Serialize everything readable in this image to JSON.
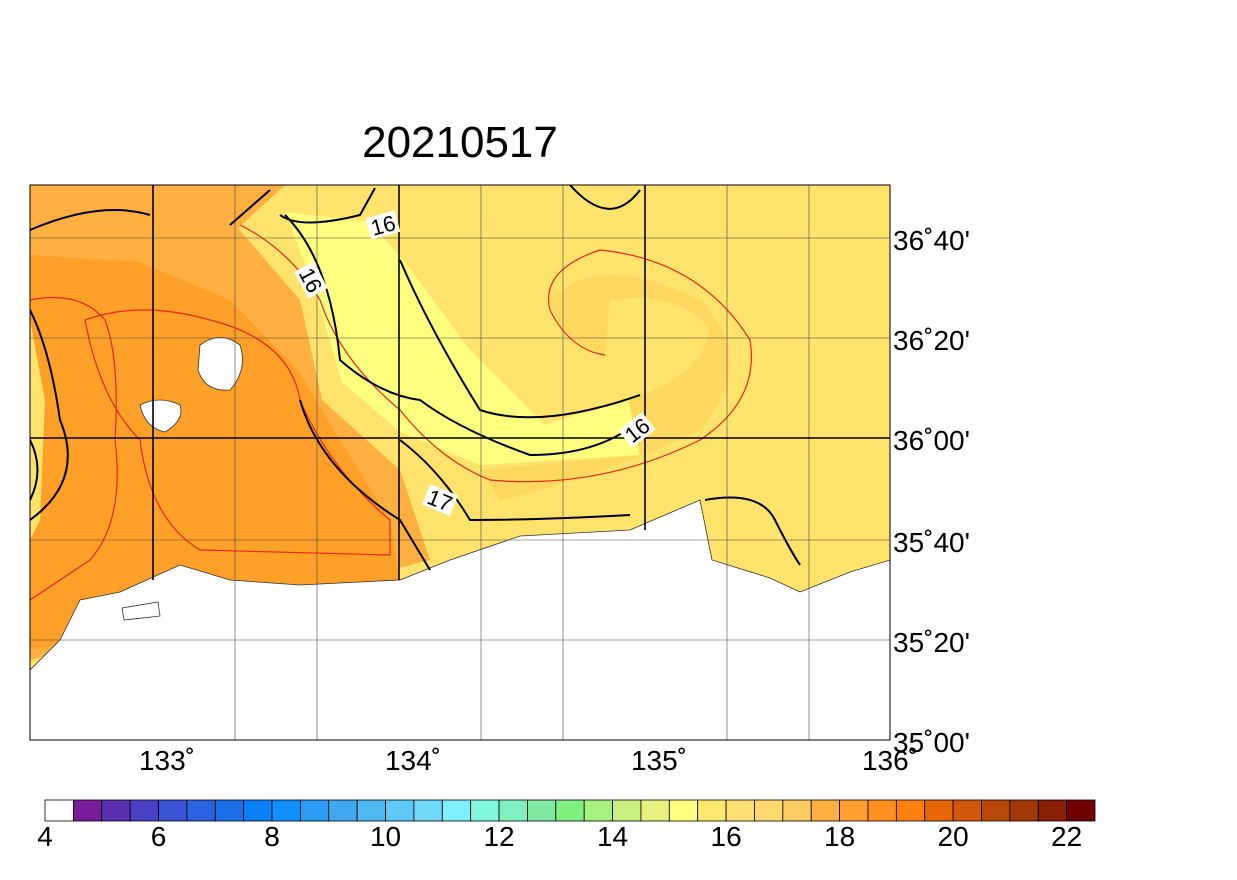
{
  "title": "20210517",
  "map": {
    "lat_labels": [
      "36˚40'",
      "36˚20'",
      "36˚00'",
      "35˚40'",
      "35˚20'",
      "35˚00'"
    ],
    "lon_labels": [
      "133˚",
      "134˚",
      "135˚",
      "136˚"
    ],
    "contour_labels": [
      "16",
      "16",
      "17",
      "16"
    ]
  },
  "colorbar": {
    "range": [
      4,
      22.5
    ],
    "ticks": [
      4,
      6,
      8,
      10,
      12,
      14,
      16,
      18,
      20,
      22
    ],
    "colors": [
      "#ffffff",
      "#781c9a",
      "#5a30b0",
      "#4a40c4",
      "#3a52d4",
      "#2a62e0",
      "#1a6ee8",
      "#0a80f4",
      "#1090ff",
      "#2a9cf4",
      "#40a8f0",
      "#50b8f0",
      "#60c8f4",
      "#70d8f8",
      "#80f0ff",
      "#80f8e0",
      "#80f0c0",
      "#80e8a0",
      "#80f080",
      "#a8f080",
      "#c8f080",
      "#e8f080",
      "#ffff80",
      "#ffe870",
      "#ffe070",
      "#ffd870",
      "#ffcc60",
      "#ffb040",
      "#ffa030",
      "#ff9020",
      "#ff8010",
      "#e86808",
      "#d05808",
      "#b84808",
      "#a03808",
      "#882008",
      "#700000"
    ]
  }
}
